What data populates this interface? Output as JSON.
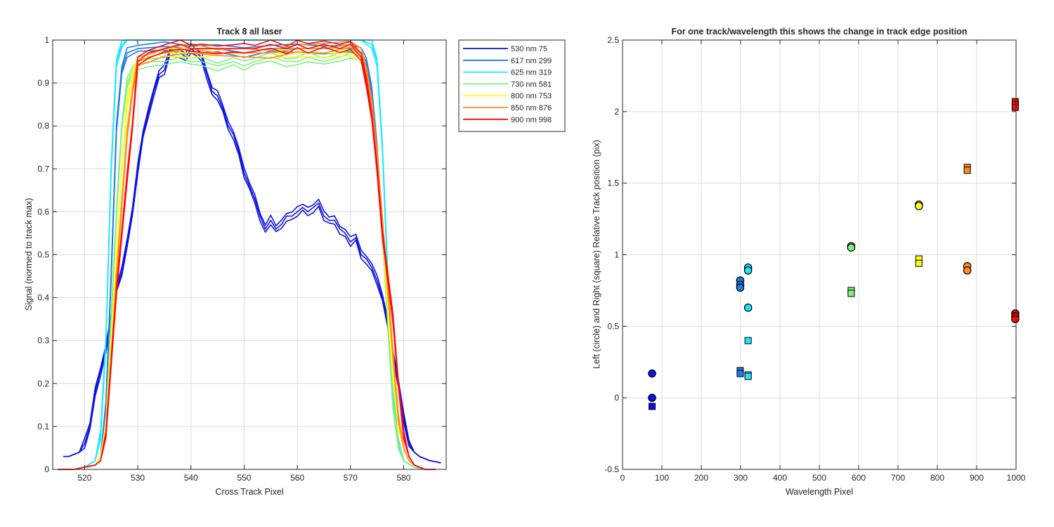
{
  "chart_data": [
    {
      "type": "line",
      "title": "Track 8  all laser",
      "xlabel": "Cross Track Pixel",
      "ylabel": "Signal (normed to track max)",
      "xlim": [
        514,
        588
      ],
      "ylim": [
        0,
        1
      ],
      "xticks": [
        "520",
        "530",
        "540",
        "550",
        "560",
        "570",
        "580"
      ],
      "yticks": [
        "0",
        "0.1",
        "0.2",
        "0.3",
        "0.4",
        "0.5",
        "0.6",
        "0.7",
        "0.8",
        "0.9",
        "1"
      ],
      "grid": true,
      "legend_position": "outside-top-right",
      "series": [
        {
          "name": "530 nm 75",
          "color": "#0a10e6",
          "x": [
            516,
            517,
            518,
            519,
            520,
            521,
            522,
            523,
            524,
            525,
            526,
            527,
            528,
            529,
            530,
            531,
            532,
            533,
            534,
            535,
            536,
            537,
            538,
            539,
            540,
            541,
            542,
            543,
            544,
            545,
            546,
            547,
            548,
            549,
            550,
            551,
            552,
            553,
            554,
            555,
            556,
            557,
            558,
            559,
            560,
            561,
            562,
            563,
            564,
            565,
            566,
            567,
            568,
            569,
            570,
            571,
            572,
            573,
            574,
            575,
            576,
            577,
            578,
            579,
            580,
            581,
            582,
            583,
            584,
            585,
            586,
            587
          ],
          "y": [
            0.03,
            0.03,
            0.035,
            0.04,
            0.06,
            0.1,
            0.18,
            0.23,
            0.28,
            0.35,
            0.42,
            0.46,
            0.53,
            0.6,
            0.7,
            0.78,
            0.83,
            0.88,
            0.92,
            0.93,
            0.97,
            0.97,
            0.97,
            0.96,
            0.98,
            0.97,
            0.96,
            0.92,
            0.88,
            0.87,
            0.84,
            0.8,
            0.78,
            0.74,
            0.69,
            0.66,
            0.63,
            0.59,
            0.56,
            0.58,
            0.56,
            0.57,
            0.59,
            0.59,
            0.6,
            0.61,
            0.6,
            0.61,
            0.62,
            0.59,
            0.58,
            0.58,
            0.56,
            0.55,
            0.53,
            0.54,
            0.5,
            0.49,
            0.47,
            0.44,
            0.4,
            0.34,
            0.27,
            0.2,
            0.12,
            0.06,
            0.04,
            0.03,
            0.025,
            0.02,
            0.018,
            0.015
          ]
        },
        {
          "name": "617 nm 299",
          "color": "#1e7ae6",
          "x": [
            515,
            518,
            520,
            522,
            523,
            524,
            525,
            526,
            527,
            528,
            530,
            535,
            540,
            545,
            550,
            555,
            560,
            565,
            570,
            572,
            573,
            574,
            575,
            576,
            577,
            578,
            579,
            580,
            582,
            584,
            586
          ],
          "y": [
            0,
            0,
            0.005,
            0.01,
            0.03,
            0.15,
            0.45,
            0.8,
            0.93,
            0.97,
            0.98,
            0.985,
            0.98,
            0.98,
            0.97,
            0.98,
            0.98,
            0.98,
            0.98,
            0.97,
            0.95,
            0.88,
            0.75,
            0.55,
            0.35,
            0.15,
            0.06,
            0.02,
            0.005,
            0,
            0
          ]
        },
        {
          "name": "625 nm 319",
          "color": "#1ee6ff",
          "x": [
            515,
            518,
            520,
            522,
            523,
            524,
            525,
            526,
            527,
            528,
            530,
            540,
            550,
            560,
            570,
            572,
            574,
            575,
            576,
            577,
            578,
            579,
            580,
            582,
            584,
            586
          ],
          "y": [
            0,
            0,
            0.005,
            0.02,
            0.08,
            0.3,
            0.7,
            0.95,
            0.99,
            1.0,
            1.0,
            1.0,
            1.0,
            1.0,
            1.0,
            1.0,
            0.99,
            0.95,
            0.75,
            0.45,
            0.2,
            0.05,
            0.02,
            0.005,
            0,
            0
          ]
        },
        {
          "name": "730 nm 581",
          "color": "#80f080",
          "x": [
            515,
            518,
            520,
            522,
            523,
            524,
            525,
            526,
            527,
            528,
            529,
            530,
            532,
            535,
            538,
            540,
            542,
            545,
            548,
            550,
            552,
            555,
            558,
            560,
            562,
            565,
            568,
            570,
            572,
            573,
            574,
            575,
            576,
            577,
            578,
            579,
            580,
            582,
            584,
            586
          ],
          "y": [
            0,
            0,
            0.005,
            0.01,
            0.03,
            0.1,
            0.35,
            0.6,
            0.8,
            0.9,
            0.93,
            0.94,
            0.95,
            0.95,
            0.96,
            0.95,
            0.95,
            0.94,
            0.95,
            0.94,
            0.95,
            0.96,
            0.95,
            0.95,
            0.96,
            0.95,
            0.96,
            0.97,
            0.96,
            0.92,
            0.85,
            0.72,
            0.55,
            0.35,
            0.15,
            0.06,
            0.02,
            0.005,
            0,
            0
          ]
        },
        {
          "name": "800 nm 753",
          "color": "#ffff1e",
          "x": [
            515,
            518,
            520,
            522,
            523,
            524,
            525,
            526,
            527,
            528,
            529,
            530,
            532,
            535,
            540,
            545,
            550,
            555,
            560,
            565,
            570,
            572,
            573,
            574,
            575,
            576,
            577,
            578,
            579,
            580,
            581,
            582,
            584,
            586
          ],
          "y": [
            0,
            0,
            0.005,
            0.01,
            0.03,
            0.1,
            0.3,
            0.5,
            0.7,
            0.85,
            0.92,
            0.95,
            0.96,
            0.97,
            0.97,
            0.97,
            0.97,
            0.97,
            0.97,
            0.97,
            0.97,
            0.96,
            0.93,
            0.85,
            0.72,
            0.55,
            0.38,
            0.22,
            0.1,
            0.05,
            0.02,
            0.01,
            0,
            0
          ]
        },
        {
          "name": "850 nm 876",
          "color": "#ff8c1e",
          "x": [
            515,
            518,
            520,
            522,
            523,
            524,
            525,
            526,
            527,
            528,
            529,
            530,
            532,
            535,
            540,
            545,
            550,
            555,
            560,
            565,
            570,
            572,
            573,
            574,
            575,
            576,
            577,
            578,
            579,
            580,
            581,
            582,
            584,
            586
          ],
          "y": [
            0,
            0,
            0.005,
            0.01,
            0.02,
            0.08,
            0.25,
            0.45,
            0.62,
            0.78,
            0.88,
            0.95,
            0.96,
            0.97,
            0.98,
            0.97,
            0.97,
            0.97,
            0.98,
            0.98,
            0.99,
            0.97,
            0.93,
            0.85,
            0.73,
            0.58,
            0.42,
            0.27,
            0.12,
            0.05,
            0.02,
            0.01,
            0,
            0
          ]
        },
        {
          "name": "900 nm 998",
          "color": "#ff0a0a",
          "x": [
            515,
            518,
            520,
            522,
            523,
            524,
            525,
            526,
            527,
            528,
            529,
            530,
            532,
            535,
            538,
            540,
            542,
            545,
            548,
            550,
            552,
            555,
            558,
            560,
            562,
            565,
            568,
            570,
            572,
            573,
            574,
            575,
            576,
            577,
            578,
            579,
            580,
            581,
            582,
            583,
            584,
            586
          ],
          "y": [
            0,
            0,
            0.005,
            0.01,
            0.02,
            0.08,
            0.25,
            0.42,
            0.55,
            0.68,
            0.8,
            0.95,
            0.97,
            0.98,
            0.99,
            0.98,
            0.98,
            0.98,
            0.98,
            0.98,
            0.98,
            0.99,
            0.98,
            0.99,
            0.98,
            0.99,
            0.98,
            0.99,
            0.96,
            0.9,
            0.82,
            0.7,
            0.55,
            0.45,
            0.35,
            0.2,
            0.08,
            0.03,
            0.01,
            0.005,
            0,
            0
          ]
        }
      ]
    },
    {
      "type": "scatter",
      "title": "For one track/wavelength this shows the change in track edge position",
      "xlabel": "Wavelength Pixel",
      "ylabel": "Left (circle) and Right (square) Relative Track position (pix)",
      "xlim": [
        0,
        1000
      ],
      "ylim": [
        -0.5,
        2.5
      ],
      "xticks": [
        "0",
        "100",
        "200",
        "300",
        "400",
        "500",
        "600",
        "700",
        "800",
        "900",
        "1000"
      ],
      "yticks": [
        "-0.5",
        "0",
        "0.5",
        "1",
        "1.5",
        "2",
        "2.5"
      ],
      "grid": true,
      "circles": [
        {
          "x": 75,
          "y": 0.17,
          "color": "#0a10e6"
        },
        {
          "x": 75,
          "y": 0.0,
          "color": "#0a10e6"
        },
        {
          "x": 299,
          "y": 0.82,
          "color": "#1e7ae6"
        },
        {
          "x": 299,
          "y": 0.79,
          "color": "#1e7ae6"
        },
        {
          "x": 299,
          "y": 0.77,
          "color": "#1e7ae6"
        },
        {
          "x": 319,
          "y": 0.91,
          "color": "#1ee6ff"
        },
        {
          "x": 319,
          "y": 0.89,
          "color": "#1ee6ff"
        },
        {
          "x": 319,
          "y": 0.63,
          "color": "#1ee6ff"
        },
        {
          "x": 581,
          "y": 1.06,
          "color": "#80f080"
        },
        {
          "x": 581,
          "y": 1.05,
          "color": "#80f080"
        },
        {
          "x": 753,
          "y": 1.35,
          "color": "#ffff1e"
        },
        {
          "x": 753,
          "y": 1.34,
          "color": "#ffff1e"
        },
        {
          "x": 876,
          "y": 0.92,
          "color": "#ff8c1e"
        },
        {
          "x": 876,
          "y": 0.89,
          "color": "#ff8c1e"
        },
        {
          "x": 998,
          "y": 0.59,
          "color": "#ff0a0a"
        },
        {
          "x": 998,
          "y": 0.57,
          "color": "#ff0a0a"
        },
        {
          "x": 998,
          "y": 0.55,
          "color": "#ff0a0a"
        }
      ],
      "squares": [
        {
          "x": 75,
          "y": -0.06,
          "color": "#0a10e6"
        },
        {
          "x": 299,
          "y": 0.19,
          "color": "#1e7ae6"
        },
        {
          "x": 299,
          "y": 0.17,
          "color": "#1e7ae6"
        },
        {
          "x": 319,
          "y": 0.4,
          "color": "#1ee6ff"
        },
        {
          "x": 319,
          "y": 0.16,
          "color": "#1ee6ff"
        },
        {
          "x": 319,
          "y": 0.15,
          "color": "#1ee6ff"
        },
        {
          "x": 581,
          "y": 0.75,
          "color": "#80f080"
        },
        {
          "x": 581,
          "y": 0.73,
          "color": "#80f080"
        },
        {
          "x": 753,
          "y": 0.97,
          "color": "#ffff1e"
        },
        {
          "x": 753,
          "y": 0.94,
          "color": "#ffff1e"
        },
        {
          "x": 876,
          "y": 1.61,
          "color": "#ff8c1e"
        },
        {
          "x": 876,
          "y": 1.59,
          "color": "#ff8c1e"
        },
        {
          "x": 998,
          "y": 2.07,
          "color": "#ff0a0a"
        },
        {
          "x": 998,
          "y": 2.05,
          "color": "#ff0a0a"
        },
        {
          "x": 998,
          "y": 2.03,
          "color": "#ff0a0a"
        }
      ]
    }
  ]
}
